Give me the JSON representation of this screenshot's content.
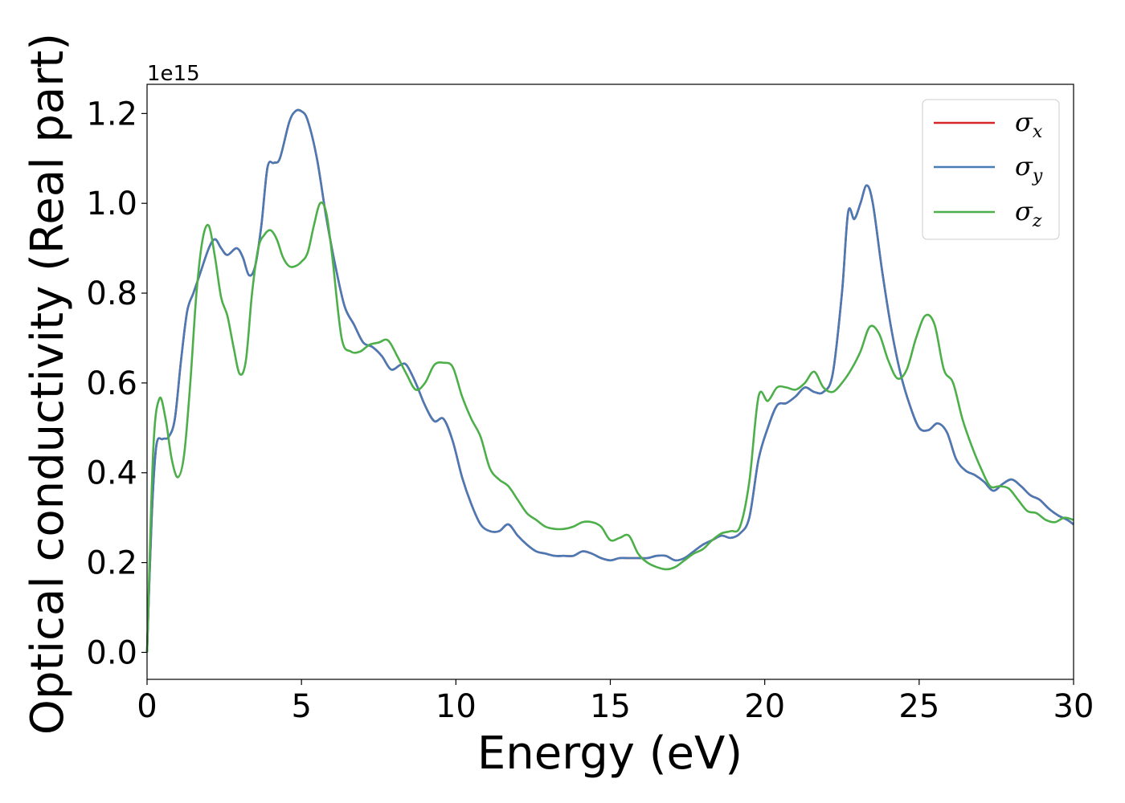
{
  "chart_data": {
    "type": "line",
    "title": "",
    "xlabel": "Energy (eV)",
    "ylabel": "Optical conductivity (Real part)",
    "y_offset_label": "1e15",
    "xlim": [
      0,
      30
    ],
    "ylim": [
      -0.06,
      1.265
    ],
    "x_ticks": [
      0,
      5,
      10,
      15,
      20,
      25,
      30
    ],
    "x_tick_labels": [
      "0",
      "5",
      "10",
      "15",
      "20",
      "25",
      "30"
    ],
    "y_ticks": [
      0.0,
      0.2,
      0.4,
      0.6,
      0.8,
      1.0,
      1.2
    ],
    "y_tick_labels": [
      "0.0",
      "0.2",
      "0.4",
      "0.6",
      "0.8",
      "1.0",
      "1.2"
    ],
    "grid": false,
    "legend_position": "top-right",
    "series": [
      {
        "name": "σ",
        "subscript": "x",
        "color": "#d62728",
        "x": [
          0,
          0.15,
          0.3,
          0.5,
          0.7,
          0.9,
          1.1,
          1.3,
          1.5,
          1.7,
          2.0,
          2.2,
          2.4,
          2.6,
          2.9,
          3.1,
          3.3,
          3.5,
          3.7,
          3.9,
          4.1,
          4.3,
          4.6,
          4.8,
          5.0,
          5.2,
          5.5,
          5.8,
          6.1,
          6.4,
          6.7,
          7.0,
          7.3,
          7.6,
          7.9,
          8.2,
          8.4,
          8.7,
          9.0,
          9.3,
          9.6,
          9.9,
          10.2,
          10.5,
          10.8,
          11.1,
          11.4,
          11.7,
          12.0,
          12.3,
          12.6,
          12.9,
          13.2,
          13.5,
          13.8,
          14.1,
          14.4,
          14.7,
          15.0,
          15.3,
          15.6,
          15.9,
          16.2,
          16.5,
          16.8,
          17.1,
          17.4,
          17.7,
          18.0,
          18.3,
          18.6,
          18.9,
          19.2,
          19.5,
          19.8,
          20.1,
          20.4,
          20.7,
          21.0,
          21.3,
          21.6,
          21.9,
          22.2,
          22.5,
          22.7,
          22.9,
          23.1,
          23.3,
          23.5,
          23.8,
          24.1,
          24.4,
          24.7,
          25.0,
          25.3,
          25.6,
          25.9,
          26.2,
          26.5,
          26.8,
          27.1,
          27.4,
          27.7,
          28.0,
          28.3,
          28.6,
          28.9,
          29.2,
          29.5,
          29.8,
          30.0
        ],
        "values": [
          0.0,
          0.3,
          0.46,
          0.475,
          0.48,
          0.52,
          0.65,
          0.76,
          0.8,
          0.84,
          0.9,
          0.92,
          0.9,
          0.885,
          0.9,
          0.88,
          0.84,
          0.86,
          0.95,
          1.08,
          1.09,
          1.1,
          1.18,
          1.205,
          1.205,
          1.185,
          1.1,
          0.97,
          0.86,
          0.77,
          0.73,
          0.69,
          0.68,
          0.66,
          0.63,
          0.64,
          0.64,
          0.6,
          0.55,
          0.515,
          0.52,
          0.47,
          0.39,
          0.33,
          0.285,
          0.27,
          0.27,
          0.285,
          0.26,
          0.24,
          0.225,
          0.22,
          0.215,
          0.215,
          0.215,
          0.225,
          0.22,
          0.21,
          0.205,
          0.21,
          0.21,
          0.21,
          0.21,
          0.215,
          0.215,
          0.205,
          0.21,
          0.225,
          0.24,
          0.25,
          0.26,
          0.255,
          0.265,
          0.3,
          0.43,
          0.5,
          0.55,
          0.555,
          0.57,
          0.59,
          0.58,
          0.58,
          0.62,
          0.8,
          0.98,
          0.965,
          1.0,
          1.04,
          1.0,
          0.85,
          0.72,
          0.62,
          0.55,
          0.5,
          0.495,
          0.51,
          0.49,
          0.43,
          0.405,
          0.395,
          0.38,
          0.36,
          0.375,
          0.385,
          0.37,
          0.35,
          0.34,
          0.32,
          0.305,
          0.295,
          0.285
        ]
      },
      {
        "name": "σ",
        "subscript": "y",
        "color": "#4a7ab5",
        "x": [
          0,
          0.15,
          0.3,
          0.5,
          0.7,
          0.9,
          1.1,
          1.3,
          1.5,
          1.7,
          2.0,
          2.2,
          2.4,
          2.6,
          2.9,
          3.1,
          3.3,
          3.5,
          3.7,
          3.9,
          4.1,
          4.3,
          4.6,
          4.8,
          5.0,
          5.2,
          5.5,
          5.8,
          6.1,
          6.4,
          6.7,
          7.0,
          7.3,
          7.6,
          7.9,
          8.2,
          8.4,
          8.7,
          9.0,
          9.3,
          9.6,
          9.9,
          10.2,
          10.5,
          10.8,
          11.1,
          11.4,
          11.7,
          12.0,
          12.3,
          12.6,
          12.9,
          13.2,
          13.5,
          13.8,
          14.1,
          14.4,
          14.7,
          15.0,
          15.3,
          15.6,
          15.9,
          16.2,
          16.5,
          16.8,
          17.1,
          17.4,
          17.7,
          18.0,
          18.3,
          18.6,
          18.9,
          19.2,
          19.5,
          19.8,
          20.1,
          20.4,
          20.7,
          21.0,
          21.3,
          21.6,
          21.9,
          22.2,
          22.5,
          22.7,
          22.9,
          23.1,
          23.3,
          23.5,
          23.8,
          24.1,
          24.4,
          24.7,
          25.0,
          25.3,
          25.6,
          25.9,
          26.2,
          26.5,
          26.8,
          27.1,
          27.4,
          27.7,
          28.0,
          28.3,
          28.6,
          28.9,
          29.2,
          29.5,
          29.8,
          30.0
        ],
        "values": [
          0.0,
          0.3,
          0.46,
          0.475,
          0.48,
          0.52,
          0.65,
          0.76,
          0.8,
          0.84,
          0.9,
          0.92,
          0.9,
          0.885,
          0.9,
          0.88,
          0.84,
          0.86,
          0.95,
          1.08,
          1.09,
          1.1,
          1.18,
          1.205,
          1.205,
          1.185,
          1.1,
          0.97,
          0.86,
          0.77,
          0.73,
          0.69,
          0.68,
          0.66,
          0.63,
          0.64,
          0.64,
          0.6,
          0.55,
          0.515,
          0.52,
          0.47,
          0.39,
          0.33,
          0.285,
          0.27,
          0.27,
          0.285,
          0.26,
          0.24,
          0.225,
          0.22,
          0.215,
          0.215,
          0.215,
          0.225,
          0.22,
          0.21,
          0.205,
          0.21,
          0.21,
          0.21,
          0.21,
          0.215,
          0.215,
          0.205,
          0.21,
          0.225,
          0.24,
          0.25,
          0.26,
          0.255,
          0.265,
          0.3,
          0.43,
          0.5,
          0.55,
          0.555,
          0.57,
          0.59,
          0.58,
          0.58,
          0.62,
          0.8,
          0.98,
          0.965,
          1.0,
          1.04,
          1.0,
          0.85,
          0.72,
          0.62,
          0.55,
          0.5,
          0.495,
          0.51,
          0.49,
          0.43,
          0.405,
          0.395,
          0.38,
          0.36,
          0.375,
          0.385,
          0.37,
          0.35,
          0.34,
          0.32,
          0.305,
          0.295,
          0.285
        ]
      },
      {
        "name": "σ",
        "subscript": "z",
        "color": "#4daf4a",
        "x": [
          0,
          0.2,
          0.4,
          0.6,
          0.8,
          1.0,
          1.2,
          1.4,
          1.6,
          1.8,
          2.0,
          2.2,
          2.4,
          2.6,
          2.8,
          3.0,
          3.2,
          3.4,
          3.6,
          3.8,
          4.0,
          4.2,
          4.4,
          4.6,
          4.8,
          5.0,
          5.2,
          5.4,
          5.6,
          5.8,
          6.0,
          6.3,
          6.6,
          6.9,
          7.2,
          7.5,
          7.8,
          8.1,
          8.4,
          8.7,
          9.0,
          9.3,
          9.6,
          9.9,
          10.2,
          10.5,
          10.8,
          11.1,
          11.4,
          11.7,
          12.0,
          12.3,
          12.6,
          12.9,
          13.2,
          13.5,
          13.8,
          14.1,
          14.4,
          14.7,
          15.0,
          15.3,
          15.6,
          15.9,
          16.2,
          16.5,
          16.8,
          17.1,
          17.4,
          17.7,
          18.0,
          18.3,
          18.6,
          18.9,
          19.2,
          19.5,
          19.8,
          20.1,
          20.4,
          20.7,
          21.0,
          21.3,
          21.6,
          21.9,
          22.2,
          22.5,
          22.8,
          23.1,
          23.4,
          23.7,
          24.0,
          24.3,
          24.6,
          24.9,
          25.2,
          25.5,
          25.8,
          26.1,
          26.4,
          26.7,
          27.0,
          27.3,
          27.6,
          27.9,
          28.2,
          28.5,
          28.8,
          29.1,
          29.4,
          29.7,
          30.0
        ],
        "values": [
          0.0,
          0.45,
          0.565,
          0.52,
          0.43,
          0.39,
          0.44,
          0.6,
          0.8,
          0.92,
          0.95,
          0.88,
          0.79,
          0.75,
          0.68,
          0.62,
          0.65,
          0.8,
          0.9,
          0.93,
          0.94,
          0.92,
          0.88,
          0.86,
          0.86,
          0.87,
          0.89,
          0.95,
          1.0,
          0.98,
          0.88,
          0.7,
          0.67,
          0.67,
          0.685,
          0.69,
          0.695,
          0.66,
          0.62,
          0.585,
          0.6,
          0.64,
          0.645,
          0.635,
          0.57,
          0.52,
          0.48,
          0.41,
          0.385,
          0.37,
          0.34,
          0.31,
          0.295,
          0.28,
          0.275,
          0.275,
          0.28,
          0.29,
          0.29,
          0.28,
          0.25,
          0.255,
          0.26,
          0.22,
          0.2,
          0.19,
          0.185,
          0.19,
          0.205,
          0.22,
          0.23,
          0.25,
          0.265,
          0.27,
          0.28,
          0.38,
          0.57,
          0.56,
          0.59,
          0.59,
          0.585,
          0.6,
          0.625,
          0.59,
          0.58,
          0.6,
          0.63,
          0.67,
          0.725,
          0.71,
          0.65,
          0.61,
          0.63,
          0.7,
          0.75,
          0.73,
          0.63,
          0.6,
          0.52,
          0.46,
          0.41,
          0.37,
          0.37,
          0.365,
          0.34,
          0.315,
          0.31,
          0.295,
          0.29,
          0.3,
          0.295
        ]
      }
    ]
  }
}
